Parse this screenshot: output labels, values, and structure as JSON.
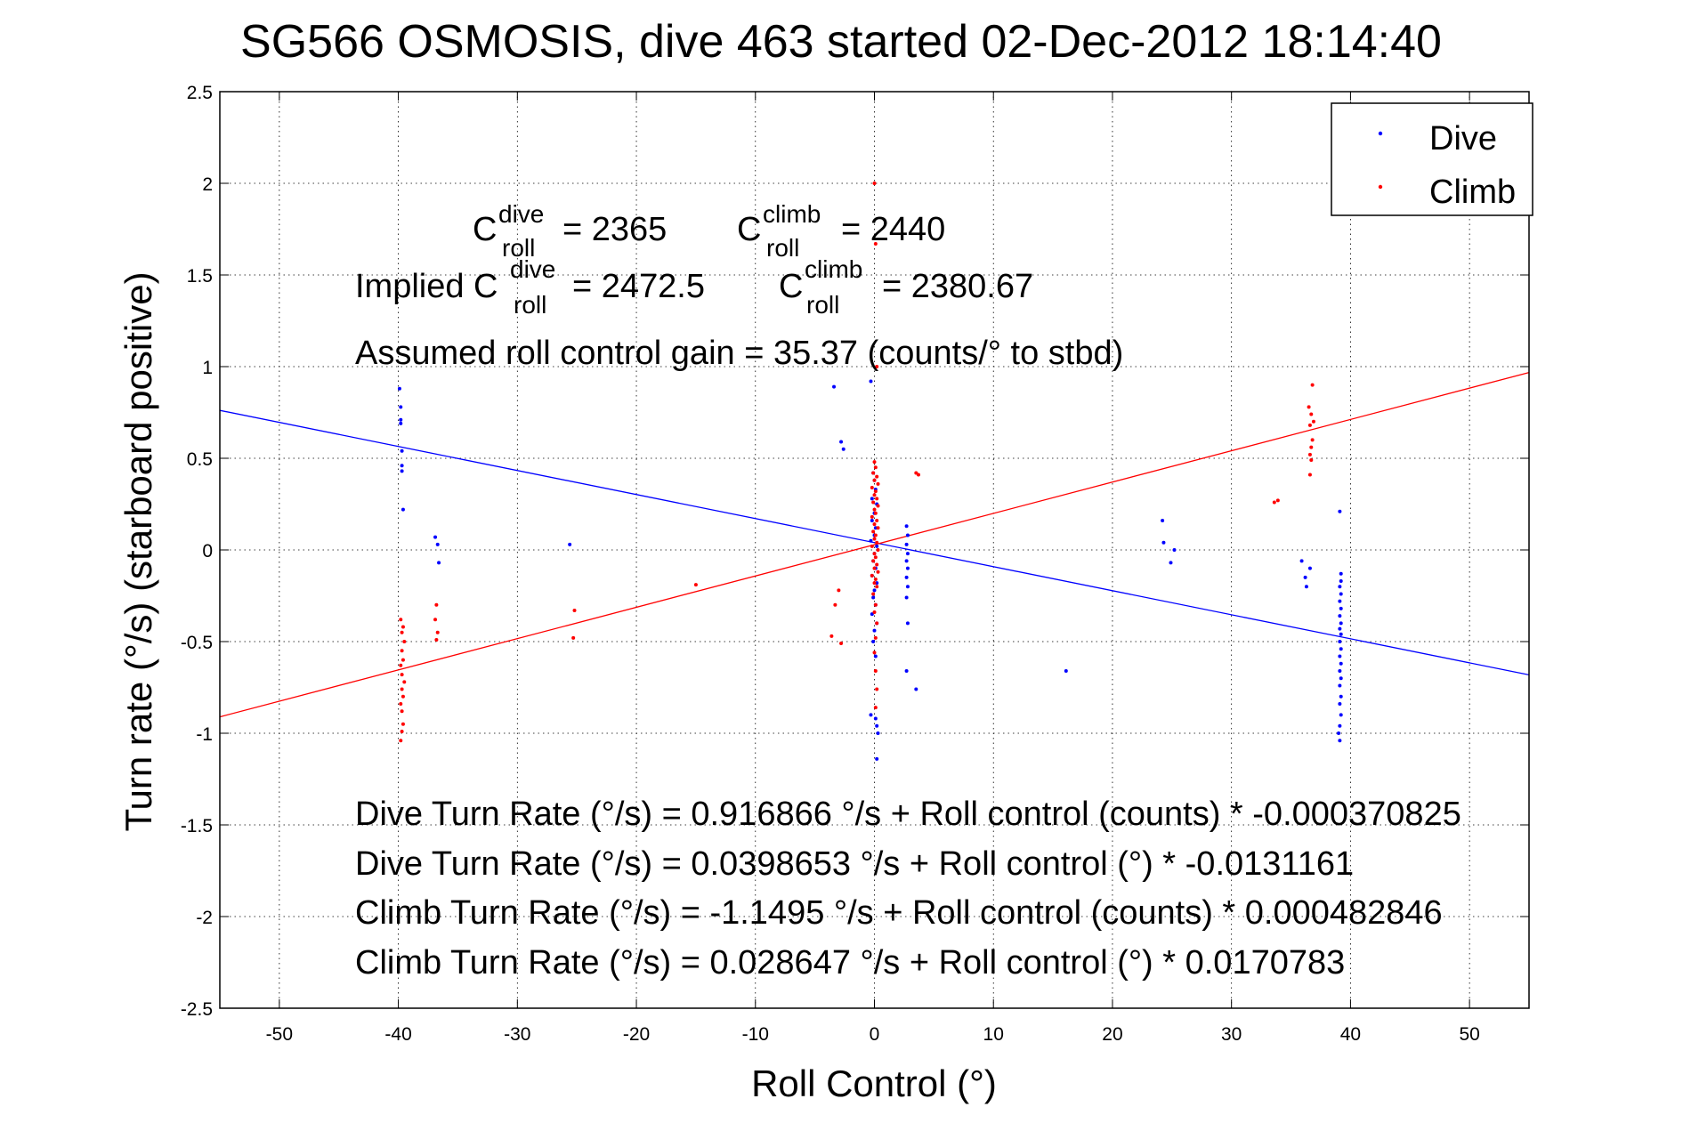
{
  "chart_data": {
    "type": "scatter",
    "title": "SG566 OSMOSIS, dive 463 started 02-Dec-2012 18:14:40",
    "xlabel": "Roll Control (°)",
    "ylabel": "Turn rate (°/s)  (starboard positive)",
    "xlim": [
      -55,
      55
    ],
    "ylim": [
      -2.5,
      2.5
    ],
    "xticks": [
      -50,
      -40,
      -30,
      -20,
      -10,
      0,
      10,
      20,
      30,
      40,
      50
    ],
    "yticks": [
      -2.5,
      -2,
      -1.5,
      -1,
      -0.5,
      0,
      0.5,
      1,
      1.5,
      2,
      2.5
    ],
    "xtick_labels": [
      "-50",
      "-40",
      "-30",
      "-20",
      "-10",
      "0",
      "10",
      "20",
      "30",
      "40",
      "50"
    ],
    "ytick_labels": [
      "-2.5",
      "-2",
      "-1.5",
      "-1",
      "-0.5",
      "0",
      "0.5",
      "1",
      "1.5",
      "2",
      "2.5"
    ],
    "grid": true,
    "legend_position": "top-right",
    "legend": [
      {
        "name": "Dive",
        "color": "#0000ff"
      },
      {
        "name": "Climb",
        "color": "#ff0000"
      }
    ],
    "series": [
      {
        "name": "Dive",
        "color": "#0000ff",
        "points": [
          [
            -39.9,
            0.88
          ],
          [
            -39.8,
            0.78
          ],
          [
            -39.8,
            0.71
          ],
          [
            -39.8,
            0.69
          ],
          [
            -39.7,
            0.54
          ],
          [
            -39.7,
            0.46
          ],
          [
            -39.7,
            0.43
          ],
          [
            -39.6,
            0.22
          ],
          [
            -36.9,
            0.07
          ],
          [
            -36.7,
            0.03
          ],
          [
            -36.6,
            -0.07
          ],
          [
            -25.6,
            0.03
          ],
          [
            -3.4,
            0.89
          ],
          [
            -2.8,
            0.59
          ],
          [
            -2.6,
            0.55
          ],
          [
            -0.3,
            0.92
          ],
          [
            -0.1,
            0.42
          ],
          [
            0.0,
            0.38
          ],
          [
            0.1,
            0.33
          ],
          [
            -0.2,
            0.28
          ],
          [
            0.2,
            0.25
          ],
          [
            0.0,
            0.2
          ],
          [
            -0.2,
            0.16
          ],
          [
            0.1,
            0.12
          ],
          [
            0.0,
            0.08
          ],
          [
            -0.3,
            0.05
          ],
          [
            0.2,
            0.02
          ],
          [
            0.0,
            -0.02
          ],
          [
            -0.1,
            -0.06
          ],
          [
            0.1,
            -0.1
          ],
          [
            -0.2,
            -0.14
          ],
          [
            0.2,
            -0.18
          ],
          [
            0.0,
            -0.22
          ],
          [
            -0.1,
            -0.26
          ],
          [
            0.1,
            -0.3
          ],
          [
            -0.2,
            -0.35
          ],
          [
            0.2,
            -0.4
          ],
          [
            0.0,
            -0.44
          ],
          [
            -0.1,
            -0.5
          ],
          [
            0.1,
            -0.58
          ],
          [
            -0.3,
            -0.9
          ],
          [
            0.1,
            -0.92
          ],
          [
            0.2,
            -0.96
          ],
          [
            0.3,
            -1.0
          ],
          [
            0.2,
            -1.14
          ],
          [
            2.7,
            0.13
          ],
          [
            2.8,
            0.08
          ],
          [
            2.7,
            0.03
          ],
          [
            2.8,
            -0.02
          ],
          [
            2.7,
            -0.06
          ],
          [
            2.8,
            -0.1
          ],
          [
            2.7,
            -0.15
          ],
          [
            2.8,
            -0.2
          ],
          [
            2.7,
            -0.26
          ],
          [
            2.8,
            -0.4
          ],
          [
            2.7,
            -0.66
          ],
          [
            3.5,
            -0.76
          ],
          [
            16.1,
            -0.66
          ],
          [
            24.2,
            0.16
          ],
          [
            24.3,
            0.04
          ],
          [
            24.9,
            -0.07
          ],
          [
            25.2,
            0.0
          ],
          [
            35.9,
            -0.06
          ],
          [
            36.2,
            -0.15
          ],
          [
            36.3,
            -0.2
          ],
          [
            36.6,
            -0.1
          ],
          [
            39.1,
            0.21
          ],
          [
            39.2,
            -0.13
          ],
          [
            39.2,
            -0.17
          ],
          [
            39.1,
            -0.2
          ],
          [
            39.2,
            -0.24
          ],
          [
            39.1,
            -0.28
          ],
          [
            39.2,
            -0.32
          ],
          [
            39.1,
            -0.36
          ],
          [
            39.2,
            -0.4
          ],
          [
            39.1,
            -0.43
          ],
          [
            39.2,
            -0.46
          ],
          [
            39.1,
            -0.5
          ],
          [
            39.2,
            -0.54
          ],
          [
            39.1,
            -0.58
          ],
          [
            39.2,
            -0.62
          ],
          [
            39.1,
            -0.66
          ],
          [
            39.2,
            -0.7
          ],
          [
            39.1,
            -0.74
          ],
          [
            39.2,
            -0.8
          ],
          [
            39.1,
            -0.84
          ],
          [
            39.2,
            -0.9
          ],
          [
            39.1,
            -0.96
          ],
          [
            39.0,
            -1.0
          ],
          [
            39.1,
            -1.04
          ]
        ]
      },
      {
        "name": "Climb",
        "color": "#ff0000",
        "points": [
          [
            -39.8,
            -0.38
          ],
          [
            -39.6,
            -0.42
          ],
          [
            -39.7,
            -0.45
          ],
          [
            -39.5,
            -0.5
          ],
          [
            -39.7,
            -0.55
          ],
          [
            -39.6,
            -0.6
          ],
          [
            -39.8,
            -0.63
          ],
          [
            -39.7,
            -0.68
          ],
          [
            -39.5,
            -0.72
          ],
          [
            -39.7,
            -0.76
          ],
          [
            -39.6,
            -0.8
          ],
          [
            -39.8,
            -0.84
          ],
          [
            -39.7,
            -0.88
          ],
          [
            -39.6,
            -0.95
          ],
          [
            -39.7,
            -0.99
          ],
          [
            -39.8,
            -1.04
          ],
          [
            -36.8,
            -0.3
          ],
          [
            -36.9,
            -0.38
          ],
          [
            -36.7,
            -0.45
          ],
          [
            -36.8,
            -0.49
          ],
          [
            -25.2,
            -0.33
          ],
          [
            -25.3,
            -0.48
          ],
          [
            -15.0,
            -0.19
          ],
          [
            -3.6,
            -0.47
          ],
          [
            -3.3,
            -0.3
          ],
          [
            -3.0,
            -0.22
          ],
          [
            -2.8,
            -0.51
          ],
          [
            0.0,
            2.0
          ],
          [
            0.1,
            1.67
          ],
          [
            0.2,
            1.0
          ],
          [
            0.0,
            0.48
          ],
          [
            0.1,
            0.45
          ],
          [
            -0.1,
            0.42
          ],
          [
            0.2,
            0.4
          ],
          [
            0.0,
            0.38
          ],
          [
            0.3,
            0.36
          ],
          [
            -0.2,
            0.34
          ],
          [
            0.1,
            0.32
          ],
          [
            0.0,
            0.3
          ],
          [
            0.2,
            0.28
          ],
          [
            -0.1,
            0.26
          ],
          [
            0.3,
            0.24
          ],
          [
            0.0,
            0.22
          ],
          [
            0.1,
            0.2
          ],
          [
            -0.2,
            0.18
          ],
          [
            0.2,
            0.16
          ],
          [
            0.0,
            0.14
          ],
          [
            0.3,
            0.12
          ],
          [
            -0.1,
            0.1
          ],
          [
            0.1,
            0.08
          ],
          [
            0.0,
            0.06
          ],
          [
            0.2,
            0.04
          ],
          [
            -0.2,
            0.02
          ],
          [
            0.3,
            0.0
          ],
          [
            0.0,
            -0.02
          ],
          [
            0.1,
            -0.04
          ],
          [
            -0.1,
            -0.06
          ],
          [
            0.2,
            -0.08
          ],
          [
            0.0,
            -0.1
          ],
          [
            0.3,
            -0.12
          ],
          [
            -0.2,
            -0.14
          ],
          [
            0.1,
            -0.16
          ],
          [
            0.0,
            -0.18
          ],
          [
            0.2,
            -0.2
          ],
          [
            -0.1,
            -0.24
          ],
          [
            0.1,
            -0.3
          ],
          [
            0.0,
            -0.34
          ],
          [
            0.2,
            -0.4
          ],
          [
            0.1,
            -0.48
          ],
          [
            0.0,
            -0.56
          ],
          [
            0.1,
            -0.66
          ],
          [
            0.2,
            -0.76
          ],
          [
            0.1,
            -0.86
          ],
          [
            3.5,
            0.42
          ],
          [
            3.7,
            0.41
          ],
          [
            33.6,
            0.26
          ],
          [
            33.9,
            0.27
          ],
          [
            36.8,
            0.9
          ],
          [
            36.5,
            0.78
          ],
          [
            36.7,
            0.74
          ],
          [
            36.9,
            0.7
          ],
          [
            36.6,
            0.68
          ],
          [
            36.8,
            0.6
          ],
          [
            36.7,
            0.56
          ],
          [
            36.6,
            0.52
          ],
          [
            36.7,
            0.49
          ],
          [
            36.6,
            0.41
          ]
        ]
      }
    ],
    "fit_lines": [
      {
        "name": "Dive fit",
        "color": "#0000ff",
        "intercept": 0.0398653,
        "slope": -0.0131161
      },
      {
        "name": "Climb fit",
        "color": "#ff0000",
        "intercept": 0.028647,
        "slope": 0.0170783
      }
    ]
  },
  "annotations": {
    "c_label": "C",
    "dive_sup": "dive",
    "climb_sup": "climb",
    "roll_sub": "roll",
    "c_roll_dive_value": "= 2365",
    "c_roll_climb_value": "= 2440",
    "implied_prefix": "Implied C",
    "implied_dive_value": "= 2472.5",
    "implied_climb_value": "= 2380.67",
    "assumed_gain": "Assumed roll control gain = 35.37 (counts/° to stbd)",
    "eq_dive_counts": "Dive Turn Rate (°/s) = 0.916866 °/s + Roll control (counts) * -0.000370825",
    "eq_dive_deg": "Dive Turn Rate (°/s) = 0.0398653 °/s + Roll control (°) * -0.0131161",
    "eq_climb_counts": "Climb Turn Rate (°/s) = -1.1495 °/s + Roll control (counts) * 0.000482846",
    "eq_climb_deg": "Climb Turn Rate (°/s) = 0.028647 °/s + Roll control (°) * 0.0170783"
  }
}
